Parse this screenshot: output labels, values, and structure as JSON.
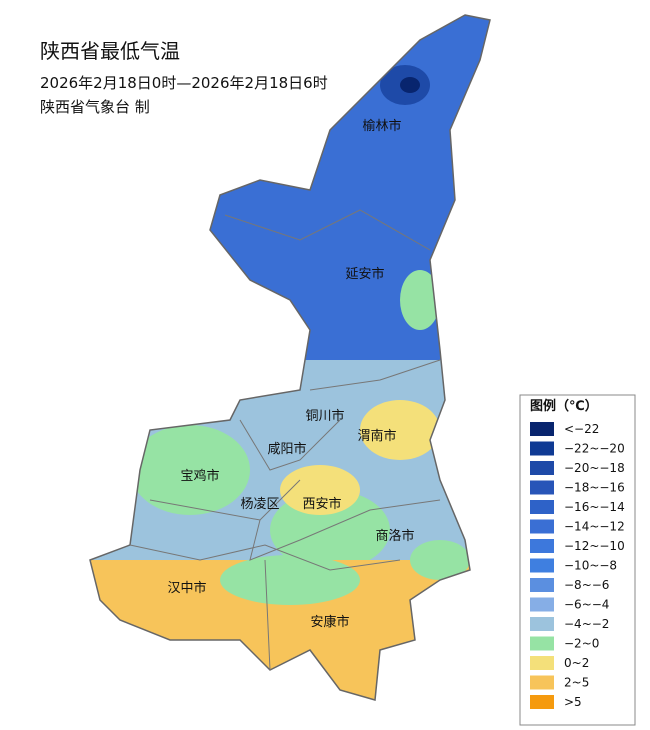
{
  "header": {
    "title": "陕西省最低气温",
    "subtitle": "2026年2月18日0时—2026年2月18日6时",
    "org": "陕西省气象台 制"
  },
  "cities": [
    {
      "label": "榆林市"
    },
    {
      "label": "延安市"
    },
    {
      "label": "铜川市"
    },
    {
      "label": "渭南市"
    },
    {
      "label": "咸阳市"
    },
    {
      "label": "宝鸡市"
    },
    {
      "label": "杨凌区"
    },
    {
      "label": "西安市"
    },
    {
      "label": "商洛市"
    },
    {
      "label": "汉中市"
    },
    {
      "label": "安康市"
    }
  ],
  "legend": {
    "title": "图例（℃）",
    "items": [
      {
        "label": "<−22",
        "color": "#08256e"
      },
      {
        "label": "−22~−20",
        "color": "#0f3a94"
      },
      {
        "label": "−20~−18",
        "color": "#1e4aa8"
      },
      {
        "label": "−18~−16",
        "color": "#2855b8"
      },
      {
        "label": "−16~−14",
        "color": "#2e62c8"
      },
      {
        "label": "−14~−12",
        "color": "#3a6fd4"
      },
      {
        "label": "−12~−10",
        "color": "#3d78dc"
      },
      {
        "label": "−10~−8",
        "color": "#3f7fe0"
      },
      {
        "label": "−8~−6",
        "color": "#5b8fe0"
      },
      {
        "label": "−6~−4",
        "color": "#86aee6"
      },
      {
        "label": "−4~−2",
        "color": "#9cc3dd"
      },
      {
        "label": "−2~0",
        "color": "#96e3a4"
      },
      {
        "label": "0~2",
        "color": "#f4e07a"
      },
      {
        "label": "2~5",
        "color": "#f7c45a"
      },
      {
        "label": ">5",
        "color": "#f59a0e"
      }
    ]
  }
}
